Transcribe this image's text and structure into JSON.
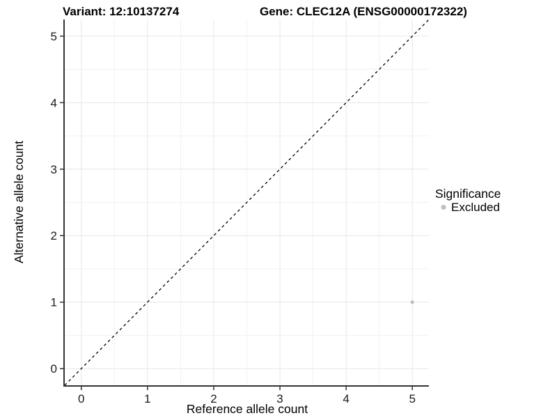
{
  "header": {
    "variant_title": "Variant: 12:10137274",
    "gene_title": "Gene: CLEC12A (ENSG00000172322)"
  },
  "chart_data": {
    "type": "scatter",
    "xlabel": "Reference allele count",
    "ylabel": "Alternative allele count",
    "xlim": [
      -0.25,
      5.25
    ],
    "ylim": [
      -0.25,
      5.25
    ],
    "xticks": [
      0,
      1,
      2,
      3,
      4,
      5
    ],
    "yticks": [
      0,
      1,
      2,
      3,
      4,
      5
    ],
    "grid": "major+minor",
    "minor_step": 0.5,
    "reference_line": {
      "type": "identity",
      "slope": 1,
      "intercept": 0,
      "style": "dashed",
      "color": "#000000"
    },
    "points": [
      {
        "x": 5,
        "y": 1,
        "series": "Excluded",
        "color": "#bebebe",
        "radius": 2.6
      }
    ],
    "legend": {
      "position": "right",
      "title": "Significance",
      "entries": [
        {
          "label": "Excluded",
          "color": "#bebebe",
          "marker_radius": 3.5
        }
      ]
    }
  },
  "colors": {
    "background": "#ffffff",
    "grid_major": "#e6e6e6",
    "grid_minor": "#f1f1f1",
    "axis_line": "#333333",
    "tick_mark": "#333333",
    "tick_label": "#1a1a1a",
    "text": "#000000",
    "excluded_point": "#bebebe"
  }
}
